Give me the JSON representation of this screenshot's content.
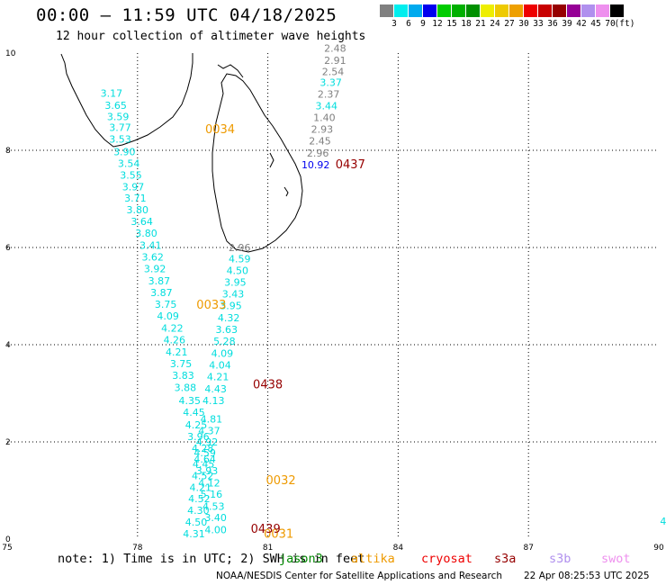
{
  "header": {
    "title": "00:00 – 11:59 UTC 04/18/2025",
    "subtitle": "12 hour collection of altimeter wave heights"
  },
  "colorbar": {
    "colors": [
      "#808080",
      "#00eeee",
      "#00aaee",
      "#0000ee",
      "#00cc00",
      "#00b000",
      "#009000",
      "#eeee00",
      "#eeca00",
      "#eea000",
      "#ee0000",
      "#c80000",
      "#960000",
      "#960096",
      "#b090ee",
      "#ee90ee",
      "#000000"
    ],
    "labels": [
      "3",
      "6",
      "9",
      "12",
      "15",
      "18",
      "21",
      "24",
      "27",
      "30",
      "33",
      "36",
      "39",
      "42",
      "45",
      "70",
      "(ft)"
    ]
  },
  "map": {
    "x_ticks": [
      "75",
      "78",
      "81",
      "84",
      "87",
      "90"
    ],
    "y_ticks": [
      "0",
      "2",
      "4",
      "6",
      "8",
      "10"
    ],
    "x_range": [
      75,
      90
    ],
    "y_range": [
      0,
      10
    ],
    "coastline_color": "#000000",
    "wave_heights": [
      {
        "lon": 77.4,
        "lat": 9.1,
        "v": "3.17",
        "c": "#00dddd"
      },
      {
        "lon": 77.5,
        "lat": 8.85,
        "v": "3.65",
        "c": "#00dddd"
      },
      {
        "lon": 77.55,
        "lat": 8.62,
        "v": "3.59",
        "c": "#00dddd"
      },
      {
        "lon": 77.6,
        "lat": 8.4,
        "v": "3.77",
        "c": "#00dddd"
      },
      {
        "lon": 77.6,
        "lat": 8.16,
        "v": "3.53",
        "c": "#00dddd"
      },
      {
        "lon": 77.7,
        "lat": 7.9,
        "v": "3.90",
        "c": "#00dddd"
      },
      {
        "lon": 77.8,
        "lat": 7.66,
        "v": "3.54",
        "c": "#00dddd"
      },
      {
        "lon": 77.85,
        "lat": 7.42,
        "v": "3.55",
        "c": "#00dddd"
      },
      {
        "lon": 77.9,
        "lat": 7.18,
        "v": "3.97",
        "c": "#00dddd"
      },
      {
        "lon": 77.95,
        "lat": 6.94,
        "v": "3.71",
        "c": "#00dddd"
      },
      {
        "lon": 78.0,
        "lat": 6.7,
        "v": "3.80",
        "c": "#00dddd"
      },
      {
        "lon": 78.1,
        "lat": 6.46,
        "v": "3.64",
        "c": "#00dddd"
      },
      {
        "lon": 78.2,
        "lat": 6.22,
        "v": "3.80",
        "c": "#00dddd"
      },
      {
        "lon": 78.3,
        "lat": 5.97,
        "v": "3.41",
        "c": "#00dddd"
      },
      {
        "lon": 78.35,
        "lat": 5.73,
        "v": "3.62",
        "c": "#00dddd"
      },
      {
        "lon": 78.4,
        "lat": 5.49,
        "v": "3.92",
        "c": "#00dddd"
      },
      {
        "lon": 78.5,
        "lat": 5.24,
        "v": "3.87",
        "c": "#00dddd"
      },
      {
        "lon": 78.55,
        "lat": 5.0,
        "v": "3.87",
        "c": "#00dddd"
      },
      {
        "lon": 78.65,
        "lat": 4.76,
        "v": "3.75",
        "c": "#00dddd"
      },
      {
        "lon": 78.7,
        "lat": 4.52,
        "v": "4.09",
        "c": "#00dddd"
      },
      {
        "lon": 78.8,
        "lat": 4.27,
        "v": "4.22",
        "c": "#00dddd"
      },
      {
        "lon": 78.85,
        "lat": 4.03,
        "v": "4.26",
        "c": "#00dddd"
      },
      {
        "lon": 78.9,
        "lat": 3.78,
        "v": "4.21",
        "c": "#00dddd"
      },
      {
        "lon": 79.0,
        "lat": 3.54,
        "v": "3.75",
        "c": "#00dddd"
      },
      {
        "lon": 79.05,
        "lat": 3.3,
        "v": "3.83",
        "c": "#00dddd"
      },
      {
        "lon": 79.1,
        "lat": 3.05,
        "v": "3.88",
        "c": "#00dddd"
      },
      {
        "lon": 79.2,
        "lat": 2.78,
        "v": "4.35",
        "c": "#00dddd"
      },
      {
        "lon": 79.3,
        "lat": 2.54,
        "v": "4.45",
        "c": "#00dddd"
      },
      {
        "lon": 79.35,
        "lat": 2.28,
        "v": "4.25",
        "c": "#00dddd"
      },
      {
        "lon": 79.4,
        "lat": 2.04,
        "v": "3.96",
        "c": "#00dddd"
      },
      {
        "lon": 79.5,
        "lat": 1.8,
        "v": "4.28",
        "c": "#00dddd"
      },
      {
        "lon": 79.55,
        "lat": 1.57,
        "v": "4.64",
        "c": "#00dddd"
      },
      {
        "lon": 79.6,
        "lat": 1.33,
        "v": "3.93",
        "c": "#00dddd"
      },
      {
        "lon": 79.65,
        "lat": 1.08,
        "v": "4.12",
        "c": "#00dddd"
      },
      {
        "lon": 79.7,
        "lat": 0.85,
        "v": "5.16",
        "c": "#00dddd"
      },
      {
        "lon": 79.75,
        "lat": 0.6,
        "v": "4.53",
        "c": "#00dddd"
      },
      {
        "lon": 79.8,
        "lat": 0.37,
        "v": "3.40",
        "c": "#00dddd"
      },
      {
        "lon": 79.8,
        "lat": 0.12,
        "v": "4.00",
        "c": "#00dddd"
      },
      {
        "lon": 80.35,
        "lat": 5.93,
        "v": "2.96",
        "c": "#808080"
      },
      {
        "lon": 80.35,
        "lat": 5.69,
        "v": "4.59",
        "c": "#00dddd"
      },
      {
        "lon": 80.3,
        "lat": 5.45,
        "v": "4.50",
        "c": "#00dddd"
      },
      {
        "lon": 80.25,
        "lat": 5.21,
        "v": "3.95",
        "c": "#00dddd"
      },
      {
        "lon": 80.2,
        "lat": 4.97,
        "v": "3.43",
        "c": "#00dddd"
      },
      {
        "lon": 80.15,
        "lat": 4.73,
        "v": "3.95",
        "c": "#00dddd"
      },
      {
        "lon": 80.1,
        "lat": 4.48,
        "v": "4.32",
        "c": "#00dddd"
      },
      {
        "lon": 80.05,
        "lat": 4.24,
        "v": "3.63",
        "c": "#00dddd"
      },
      {
        "lon": 80.0,
        "lat": 4.0,
        "v": "5.28",
        "c": "#00dddd"
      },
      {
        "lon": 79.95,
        "lat": 3.75,
        "v": "4.09",
        "c": "#00dddd"
      },
      {
        "lon": 79.9,
        "lat": 3.51,
        "v": "4.04",
        "c": "#00dddd"
      },
      {
        "lon": 79.85,
        "lat": 3.27,
        "v": "4.21",
        "c": "#00dddd"
      },
      {
        "lon": 79.8,
        "lat": 3.02,
        "v": "4.43",
        "c": "#00dddd"
      },
      {
        "lon": 79.75,
        "lat": 2.78,
        "v": "4.13",
        "c": "#00dddd"
      },
      {
        "lon": 79.7,
        "lat": 2.4,
        "v": "4.81",
        "c": "#00dddd"
      },
      {
        "lon": 79.65,
        "lat": 2.16,
        "v": "4.37",
        "c": "#00dddd"
      },
      {
        "lon": 79.6,
        "lat": 1.93,
        "v": "4.92",
        "c": "#00dddd"
      },
      {
        "lon": 79.55,
        "lat": 1.7,
        "v": "4.59",
        "c": "#00dddd"
      },
      {
        "lon": 79.52,
        "lat": 1.47,
        "v": "4.45",
        "c": "#00dddd"
      },
      {
        "lon": 79.5,
        "lat": 1.23,
        "v": "4.52",
        "c": "#00dddd"
      },
      {
        "lon": 79.45,
        "lat": 0.99,
        "v": "4.21",
        "c": "#00dddd"
      },
      {
        "lon": 79.42,
        "lat": 0.76,
        "v": "4.52",
        "c": "#00dddd"
      },
      {
        "lon": 79.4,
        "lat": 0.52,
        "v": "4.30",
        "c": "#00dddd"
      },
      {
        "lon": 79.35,
        "lat": 0.28,
        "v": "4.50",
        "c": "#00dddd"
      },
      {
        "lon": 79.3,
        "lat": 0.04,
        "v": "4.31",
        "c": "#00dddd"
      },
      {
        "lon": 82.55,
        "lat": 10.03,
        "v": "2.48",
        "c": "#808080"
      },
      {
        "lon": 82.55,
        "lat": 9.78,
        "v": "2.91",
        "c": "#808080"
      },
      {
        "lon": 82.5,
        "lat": 9.55,
        "v": "2.54",
        "c": "#808080"
      },
      {
        "lon": 82.45,
        "lat": 9.32,
        "v": "3.37",
        "c": "#00dddd"
      },
      {
        "lon": 82.4,
        "lat": 9.08,
        "v": "2.37",
        "c": "#808080"
      },
      {
        "lon": 82.35,
        "lat": 8.84,
        "v": "3.44",
        "c": "#00dddd"
      },
      {
        "lon": 82.3,
        "lat": 8.6,
        "v": "1.40",
        "c": "#808080"
      },
      {
        "lon": 82.25,
        "lat": 8.36,
        "v": "2.93",
        "c": "#808080"
      },
      {
        "lon": 82.2,
        "lat": 8.12,
        "v": "2.45",
        "c": "#808080"
      },
      {
        "lon": 82.15,
        "lat": 7.87,
        "v": "2.96",
        "c": "#808080"
      },
      {
        "lon": 82.1,
        "lat": 7.63,
        "v": "10.92",
        "c": "#0000ee"
      },
      {
        "lon": 90.1,
        "lat": 0.3,
        "v": "4",
        "c": "#00dddd"
      }
    ],
    "pass_times": [
      {
        "lon": 79.9,
        "lat": 8.35,
        "v": "0034",
        "c": "#ee9a00"
      },
      {
        "lon": 82.9,
        "lat": 7.63,
        "v": "0437",
        "c": "#960000"
      },
      {
        "lon": 79.7,
        "lat": 4.74,
        "v": "0033",
        "c": "#ee9a00"
      },
      {
        "lon": 81.0,
        "lat": 3.1,
        "v": "0438",
        "c": "#960000"
      },
      {
        "lon": 81.3,
        "lat": 1.13,
        "v": "0032",
        "c": "#ee9a00"
      },
      {
        "lon": 81.25,
        "lat": 0.03,
        "v": "0031",
        "c": "#ee9a00"
      },
      {
        "lon": 80.95,
        "lat": 0.13,
        "v": "0439",
        "c": "#960000"
      }
    ]
  },
  "note": "note:  1) Time is in UTC; 2) SWH is in feet",
  "legend": [
    {
      "label": "jason3",
      "color": "#008800"
    },
    {
      "label": "altika",
      "color": "#ee9a00"
    },
    {
      "label": "cryosat",
      "color": "#ee0000"
    },
    {
      "label": "s3a",
      "color": "#960000"
    },
    {
      "label": "s3b",
      "color": "#b090ee"
    },
    {
      "label": "swot",
      "color": "#ee90ee"
    }
  ],
  "footer": {
    "credit": "NOAA/NESDIS Center for Satellite Applications and Research",
    "timestamp": "22 Apr 08:25:53 UTC 2025"
  }
}
